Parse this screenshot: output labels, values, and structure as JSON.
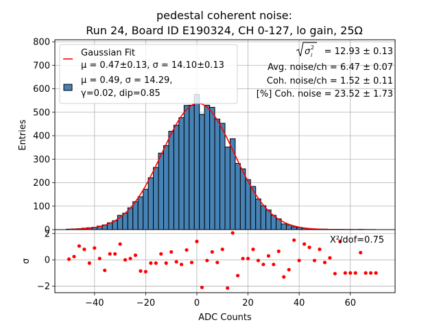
{
  "chart_data": [
    {
      "type": "bar",
      "title_line1": "pedestal coherent noise:",
      "title_line2": "Run 24, Board ID E190324, CH 0-127, lo gain, 25Ω",
      "xlabel": "",
      "ylabel": "Entries",
      "xlim": [
        -55.5,
        77.5
      ],
      "ylim": [
        0,
        800
      ],
      "grid": true,
      "yticks": [
        0,
        100,
        200,
        300,
        400,
        500,
        600,
        700,
        800
      ],
      "xticks": [
        -40,
        -20,
        0,
        20,
        40,
        60
      ],
      "bin_width": 2,
      "bin_centers": [
        -50,
        -48,
        -46,
        -44,
        -42,
        -40,
        -38,
        -36,
        -34,
        -32,
        -30,
        -28,
        -26,
        -24,
        -22,
        -20,
        -18,
        -16,
        -14,
        -12,
        -10,
        -8,
        -6,
        -4,
        -2,
        0,
        2,
        4,
        6,
        8,
        10,
        12,
        14,
        16,
        18,
        20,
        22,
        24,
        26,
        28,
        30,
        32,
        34,
        36,
        38,
        40,
        42,
        44,
        46,
        48,
        50,
        52,
        54,
        56,
        58,
        60,
        62,
        64,
        66,
        68,
        70
      ],
      "values": [
        2,
        3,
        4,
        6,
        8,
        10,
        15,
        20,
        29,
        38,
        61,
        70,
        93,
        119,
        140,
        172,
        221,
        265,
        326,
        358,
        419,
        445,
        477,
        529,
        530,
        576,
        491,
        530,
        521,
        471,
        453,
        352,
        387,
        282,
        259,
        213,
        184,
        131,
        102,
        84,
        61,
        46,
        24,
        20,
        12,
        9,
        6,
        4,
        3,
        2,
        2,
        1,
        1,
        1,
        0,
        0,
        0,
        1,
        0,
        0,
        0
      ],
      "bar_color": "#4682b4",
      "fit": {
        "name": "Gaussian Fit",
        "mu": 0.47,
        "sigma": 14.1,
        "amplitude": 538,
        "color": "#ff0000",
        "x_range": [
          -50,
          70
        ]
      },
      "legend": {
        "position": "top-left",
        "entries": [
          {
            "label_line1": "Gaussian Fit",
            "label_line2": "μ = 0.47±0.13, σ = 14.10±0.13",
            "marker": "line"
          },
          {
            "label_line1": "μ = 0.49, σ = 14.29,",
            "label_line2": "γ=0.02, dip=0.85",
            "marker": "patch"
          }
        ]
      },
      "annotations": [
        {
          "kind": "sqrt",
          "symbol": "σ",
          "sub": "i",
          "sup": "2",
          "text": " = 12.93 ± 0.13"
        },
        {
          "text": "Avg. noise/ch = 6.47 ± 0.07"
        },
        {
          "text": "Coh. noise/ch = 1.52 ± 0.11"
        },
        {
          "text": "[%] Coh. noise = 23.52  ± 1.73"
        }
      ]
    },
    {
      "type": "scatter",
      "xlabel": "ADC Counts",
      "ylabel": "σ",
      "xlim": [
        -55.5,
        77.5
      ],
      "ylim": [
        -2.5,
        2.3
      ],
      "yticks": [
        -2,
        0,
        2
      ],
      "xticks": [
        -40,
        -20,
        0,
        20,
        40,
        60
      ],
      "grid": true,
      "point_color": "#ff0000",
      "x": [
        -50,
        -48,
        -46,
        -44,
        -42,
        -40,
        -38,
        -36,
        -34,
        -32,
        -30,
        -28,
        -26,
        -24,
        -22,
        -20,
        -18,
        -16,
        -14,
        -12,
        -10,
        -8,
        -6,
        -4,
        -2,
        0,
        2,
        4,
        6,
        8,
        10,
        12,
        14,
        16,
        18,
        20,
        22,
        24,
        26,
        28,
        30,
        32,
        34,
        36,
        38,
        40,
        42,
        44,
        46,
        48,
        50,
        52,
        54,
        56,
        58,
        60,
        62,
        64,
        66,
        68,
        70
      ],
      "y": [
        0.05,
        0.25,
        1.05,
        0.8,
        -0.25,
        0.9,
        0.1,
        -0.8,
        0.45,
        0.45,
        1.2,
        0.0,
        0.1,
        0.35,
        -0.85,
        -0.9,
        -0.25,
        -0.25,
        0.45,
        -0.25,
        0.6,
        -0.15,
        -0.35,
        0.75,
        -0.2,
        1.4,
        -2.1,
        -0.05,
        0.6,
        -0.2,
        0.8,
        -2.15,
        2.05,
        -1.2,
        0.1,
        0.1,
        0.8,
        -0.05,
        -0.35,
        0.3,
        -0.35,
        0.65,
        -1.3,
        -0.75,
        1.5,
        -0.05,
        1.2,
        0.95,
        -0.05,
        0.8,
        -0.2,
        0.15,
        -1.05,
        1.4,
        -1.0,
        -1.0,
        -1.0,
        0.55,
        -1.0,
        -1.0,
        -1.0
      ],
      "annotation": "X²/dof=0.75"
    }
  ]
}
